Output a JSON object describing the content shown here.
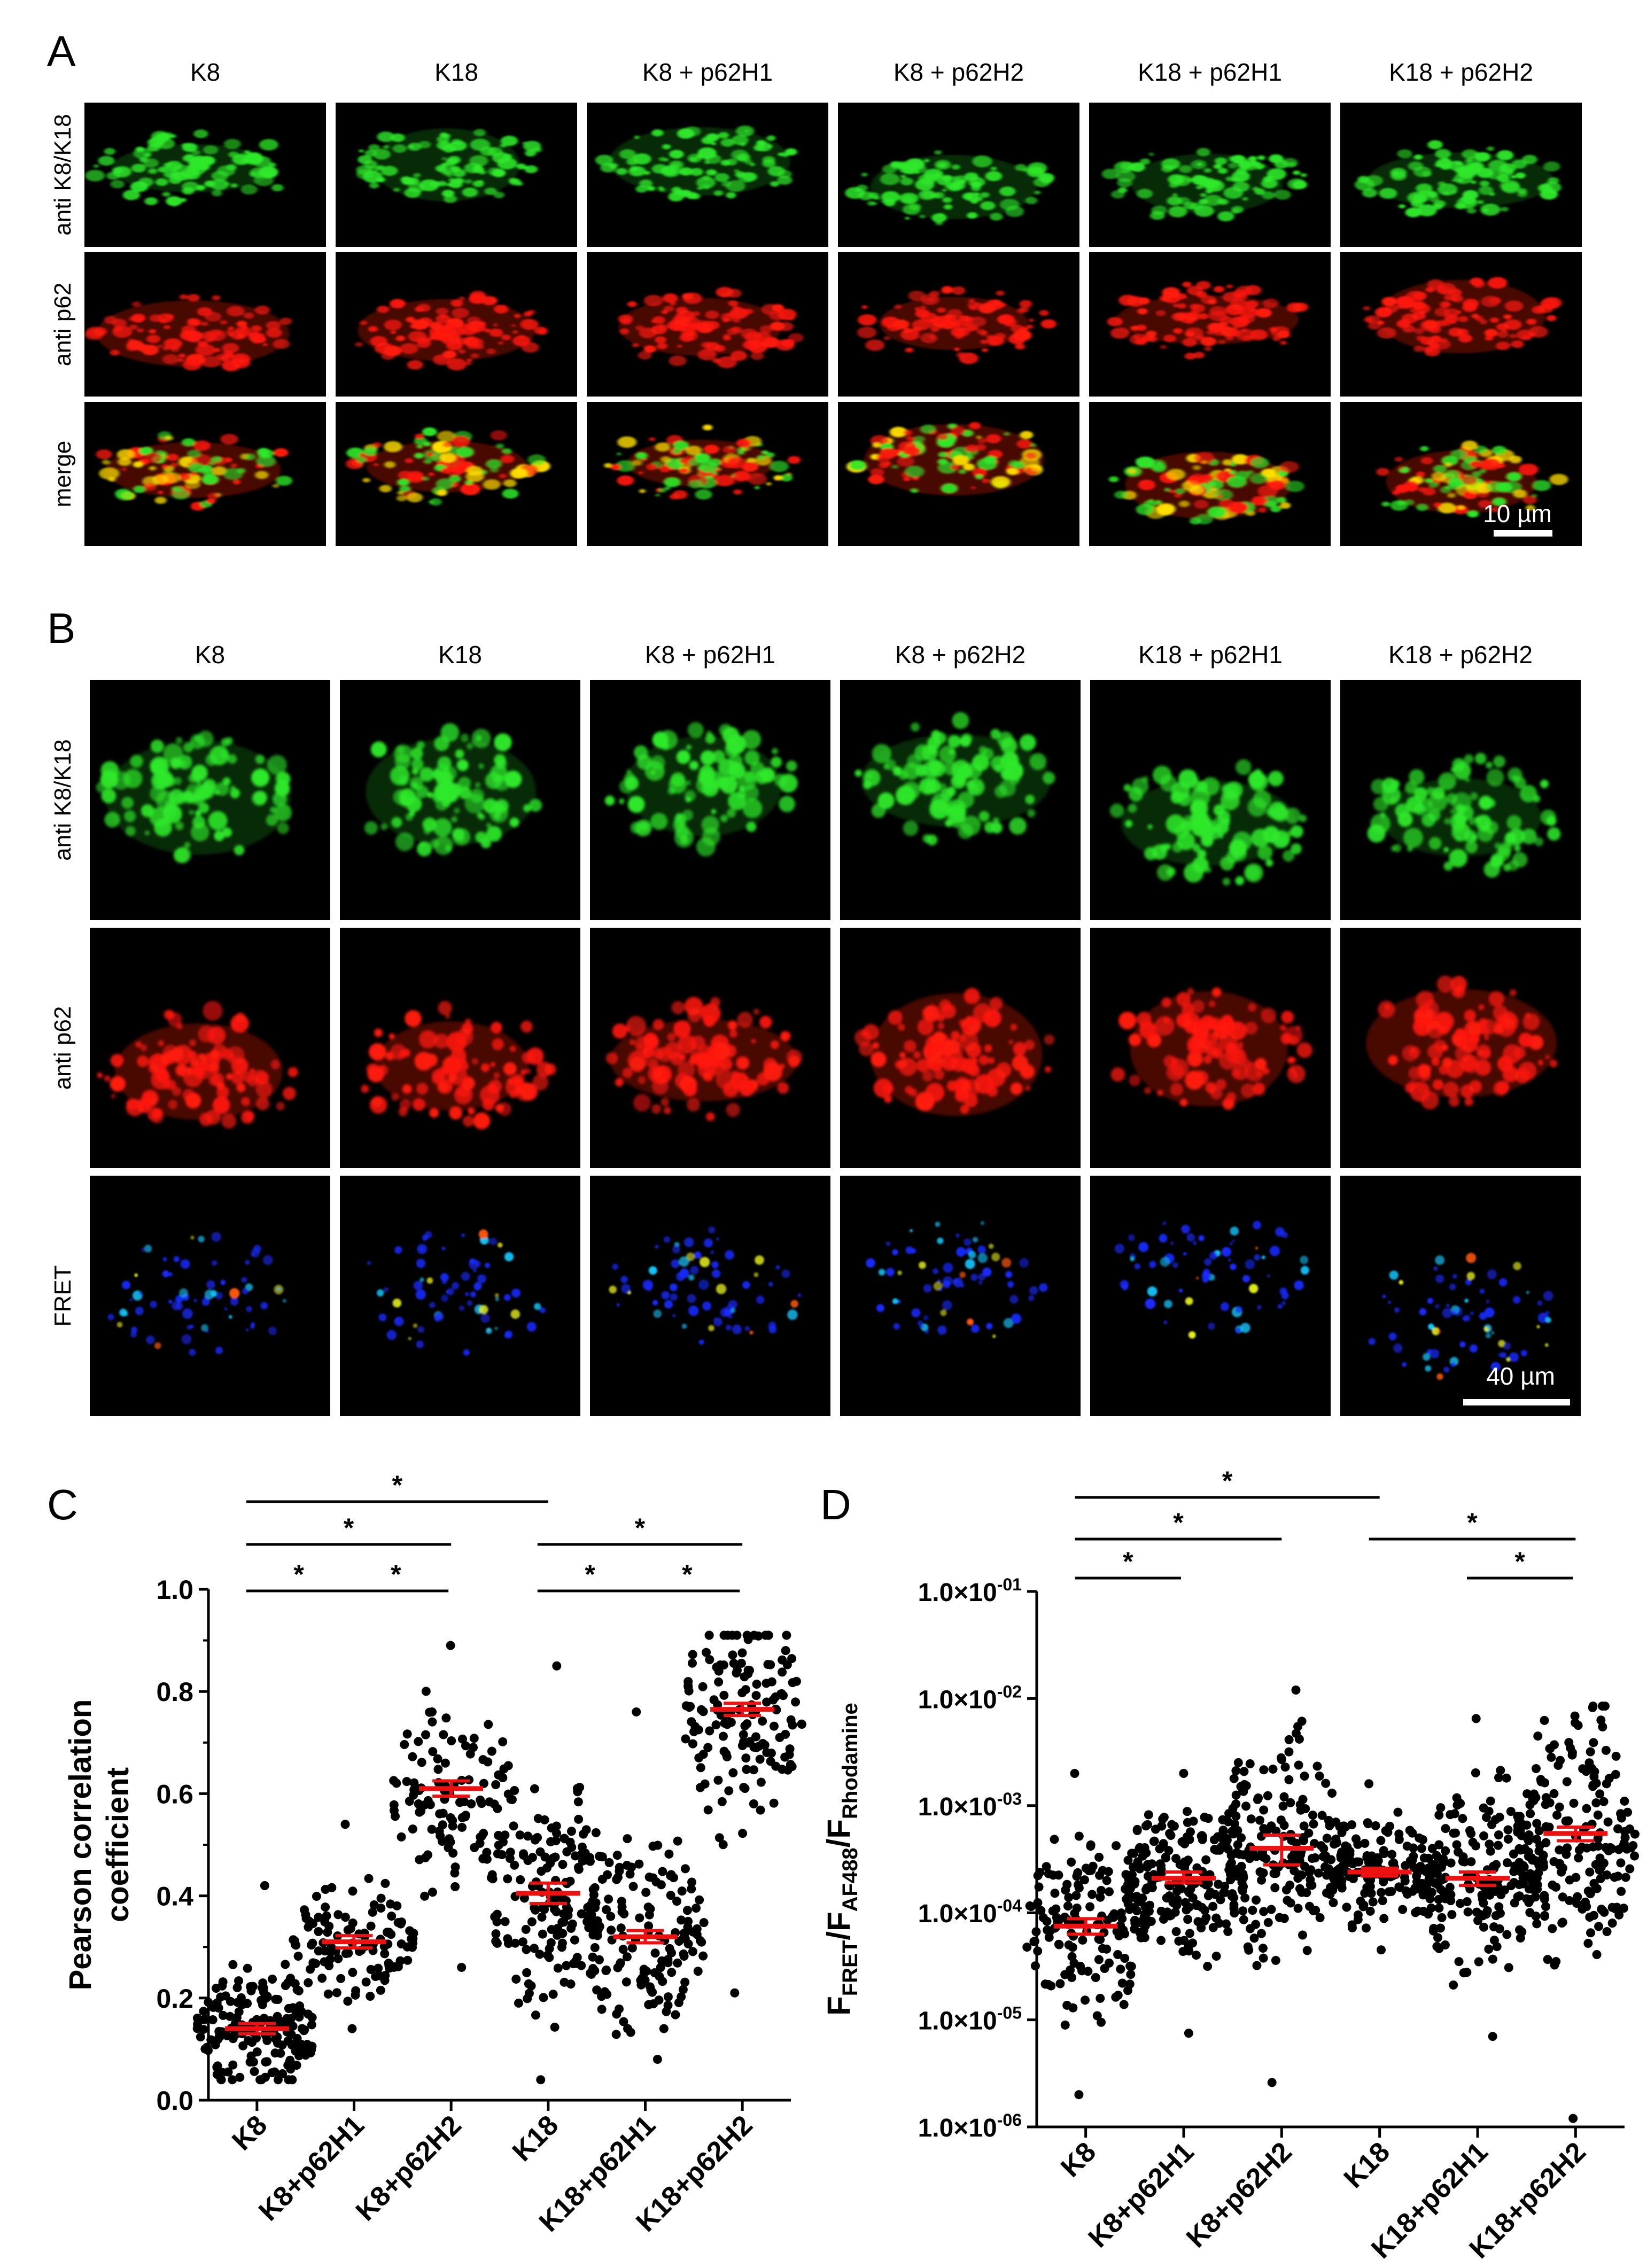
{
  "panel_a": {
    "letter": "A",
    "columns": [
      "K8",
      "K18",
      "K8 + p62H1",
      "K8 + p62H2",
      "K18 + p62H1",
      "K18 + p62H2"
    ],
    "rows": [
      "anti K8/K18",
      "anti p62",
      "merge"
    ],
    "scale_label": "10 µm"
  },
  "panel_b": {
    "letter": "B",
    "columns": [
      "K8",
      "K18",
      "K8 + p62H1",
      "K8 + p62H2",
      "K18 + p62H1",
      "K18 + p62H2"
    ],
    "rows": [
      "anti K8/K18",
      "anti p62",
      "FRET"
    ],
    "scale_label": "40 µm"
  },
  "colors": {
    "green": "#2ee82a",
    "red": "#ff1a10",
    "merge_yellow": "#ffe000",
    "mean_bar": "#ee1111",
    "fret_blue": "#1a2bff"
  },
  "chart_data": [
    {
      "panel": "C",
      "type": "scatter",
      "ylabel": "Pearson correlation coefficient",
      "ylabel_lines": [
        "Pearson correlation",
        "coefficient"
      ],
      "ylim": [
        0,
        1.0
      ],
      "yticks": [
        "0.0",
        "0.2",
        "0.4",
        "0.6",
        "0.8",
        "1.0"
      ],
      "categories": [
        "K8",
        "K8+p62H1",
        "K8+p62H2",
        "K18",
        "K18+p62H1",
        "K18+p62H2"
      ],
      "series": [
        {
          "category": "K8",
          "mean": 0.14,
          "sem": 0.01,
          "min": 0.04,
          "max": 0.42,
          "n": 170,
          "skew": -0.3
        },
        {
          "category": "K8+p62H1",
          "mean": 0.31,
          "sem": 0.012,
          "min": 0.14,
          "max": 0.54,
          "n": 110,
          "skew": 0.0
        },
        {
          "category": "K8+p62H2",
          "mean": 0.61,
          "sem": 0.015,
          "min": 0.26,
          "max": 0.89,
          "n": 110,
          "skew": 0.15
        },
        {
          "category": "K18",
          "mean": 0.405,
          "sem": 0.02,
          "min": 0.04,
          "max": 0.85,
          "n": 170,
          "skew": 0.0
        },
        {
          "category": "K18+p62H1",
          "mean": 0.32,
          "sem": 0.012,
          "min": 0.08,
          "max": 0.76,
          "n": 150,
          "skew": -0.2
        },
        {
          "category": "K18+p62H2",
          "mean": 0.765,
          "sem": 0.012,
          "min": 0.21,
          "max": 0.91,
          "n": 150,
          "skew": 0.8
        }
      ],
      "significance": [
        {
          "from": 0,
          "to": 3,
          "label": "*"
        },
        {
          "from": 0,
          "to": 2,
          "label": "*"
        },
        {
          "from": 0,
          "to": 1,
          "label": "*"
        },
        {
          "from": 1,
          "to": 2,
          "label": "*"
        },
        {
          "from": 3,
          "to": 5,
          "label": "*"
        },
        {
          "from": 3,
          "to": 4,
          "label": "*"
        },
        {
          "from": 4,
          "to": 5,
          "label": "*"
        }
      ]
    },
    {
      "panel": "D",
      "type": "scatter",
      "yscale": "log",
      "ylabel": "FFRET/FAF488/FRhodamine",
      "ylabel_parts": [
        [
          "F",
          ""
        ],
        [
          "FRET",
          "sub"
        ],
        [
          "/F",
          ""
        ],
        [
          "AF488",
          "sub"
        ],
        [
          "/F",
          ""
        ],
        [
          "Rhodamine",
          "sub"
        ]
      ],
      "ylim": [
        1e-06,
        0.1
      ],
      "yticks": [
        {
          "base": "1.0×10",
          "exp": "-06",
          "value": 1e-06
        },
        {
          "base": "1.0×10",
          "exp": "-05",
          "value": 1e-05
        },
        {
          "base": "1.0×10",
          "exp": "-04",
          "value": 0.0001
        },
        {
          "base": "1.0×10",
          "exp": "-03",
          "value": 0.001
        },
        {
          "base": "1.0×10",
          "exp": "-02",
          "value": 0.01
        },
        {
          "base": "1.0×10",
          "exp": "-01",
          "value": 0.1
        }
      ],
      "categories": [
        "K8",
        "K8+p62H1",
        "K8+p62H2",
        "K18",
        "K18+p62H1",
        "K18+p62H2"
      ],
      "series": [
        {
          "category": "K8",
          "mean": 7.5e-05,
          "sem_low": 6.3e-05,
          "sem_high": 8.8e-05,
          "min": 2e-06,
          "max": 0.002,
          "n": 150,
          "skew": 0.0
        },
        {
          "category": "K8+p62H1",
          "mean": 0.00021,
          "sem_low": 0.00019,
          "sem_high": 0.00024,
          "min": 7.5e-06,
          "max": 0.002,
          "n": 200,
          "skew": 0.0
        },
        {
          "category": "K8+p62H2",
          "mean": 0.0004,
          "sem_low": 0.00028,
          "sem_high": 0.00053,
          "min": 2.6e-06,
          "max": 0.012,
          "n": 180,
          "skew": 0.0
        },
        {
          "category": "K18",
          "mean": 0.00024,
          "sem_low": 0.00022,
          "sem_high": 0.00026,
          "min": 4.5e-05,
          "max": 0.0016,
          "n": 160,
          "skew": 0.0
        },
        {
          "category": "K18+p62H1",
          "mean": 0.00021,
          "sem_low": 0.00018,
          "sem_high": 0.00024,
          "min": 7e-06,
          "max": 0.0065,
          "n": 180,
          "skew": 0.0
        },
        {
          "category": "K18+p62H2",
          "mean": 0.00055,
          "sem_low": 0.00047,
          "sem_high": 0.00063,
          "min": 1.2e-06,
          "max": 0.0085,
          "n": 200,
          "skew": 0.0
        }
      ],
      "significance": [
        {
          "from": 0,
          "to": 3,
          "label": "*"
        },
        {
          "from": 0,
          "to": 2,
          "label": "*"
        },
        {
          "from": 0,
          "to": 1,
          "label": "*"
        },
        {
          "from": 3,
          "to": 5,
          "label": "*"
        },
        {
          "from": 4,
          "to": 5,
          "label": "*"
        }
      ]
    }
  ],
  "panel_c": {
    "letter": "C"
  },
  "panel_d": {
    "letter": "D"
  }
}
